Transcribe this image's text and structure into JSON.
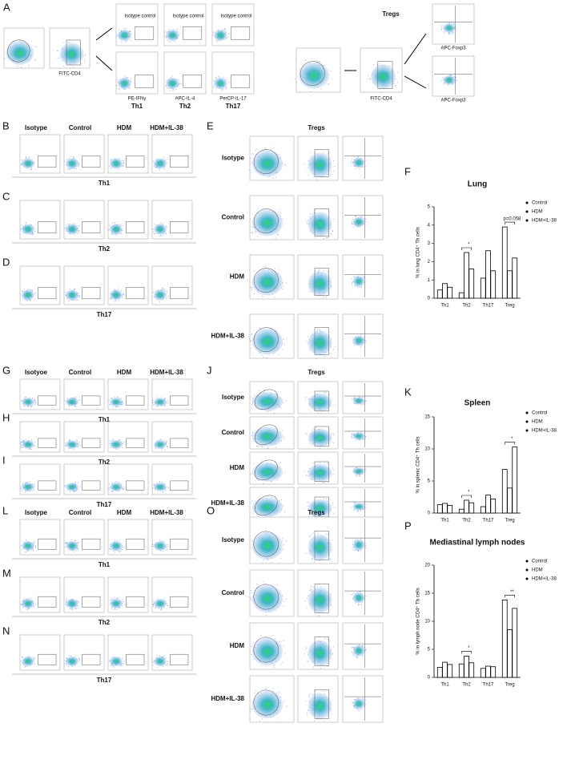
{
  "panel_a": {
    "letter": "A",
    "cd4_label": "FITC-CD4",
    "isotype_control": "Isotype control",
    "x_labels": [
      "PE-IFNγ",
      "APC-IL-4",
      "PerCP-IL-17"
    ],
    "subsets": [
      "Th1",
      "Th2",
      "Th17"
    ],
    "tregs": "Tregs",
    "tregs_cd4_label": "FITC-CD4",
    "foxp3_label": "APC-Foxp3"
  },
  "blocks": [
    {
      "letters": [
        "B",
        "C",
        "D"
      ],
      "tregs_letter": "E",
      "headers": [
        "Isotype",
        "Control",
        "HDM",
        "HDM+IL-38"
      ],
      "rows": [
        "Th1",
        "Th2",
        "Th17"
      ],
      "tregs_title": "Tregs",
      "tregs_rows": [
        "Isotype",
        "Control",
        "HDM",
        "HDM+IL-38"
      ],
      "chart_letter": "F"
    },
    {
      "letters": [
        "G",
        "H",
        "I"
      ],
      "tregs_letter": "J",
      "headers": [
        "Isotyoe",
        "Control",
        "HDM",
        "HDM+IL-38"
      ],
      "rows": [
        "Th1",
        "Th2",
        "Th17"
      ],
      "tregs_title": "Tregs",
      "tregs_rows": [
        "Isotype",
        "Control",
        "HDM",
        "HDM+IL-38"
      ],
      "chart_letter": "K"
    },
    {
      "letters": [
        "L",
        "M",
        "N"
      ],
      "tregs_letter": "O",
      "headers": [
        "Isotype",
        "Control",
        "HDM",
        "HDM+IL-38"
      ],
      "rows": [
        "Th1",
        "Th2",
        "Th17"
      ],
      "tregs_title": "Tregs",
      "tregs_rows": [
        "Isotype",
        "Control",
        "HDM",
        "HDM+IL-38"
      ],
      "chart_letter": "P"
    }
  ],
  "chart_data": [
    {
      "type": "bar",
      "title": "Lung",
      "ylabel": "% in lung CD4⁺ Th cells",
      "categories": [
        "Th1",
        "Th2",
        "Th17",
        "Treg"
      ],
      "series": [
        {
          "name": "Control",
          "color": "#000000",
          "values": [
            0.45,
            0.3,
            1.1,
            3.9
          ]
        },
        {
          "name": "HDM",
          "color": "#000000",
          "values": [
            0.8,
            2.5,
            2.6,
            1.5
          ]
        },
        {
          "name": "HDM+IL-38",
          "color": "#000000",
          "values": [
            0.6,
            1.6,
            1.5,
            2.2
          ]
        }
      ],
      "ylim": [
        0,
        5
      ],
      "yticks": [
        0,
        1,
        2,
        3,
        4,
        5
      ],
      "legend": "right",
      "annotations": [
        {
          "label": "*",
          "category": "Th2"
        },
        {
          "label": "p=0.058",
          "category": "Treg"
        }
      ]
    },
    {
      "type": "bar",
      "title": "Spleen",
      "ylabel": "% in splenic CD4⁺ Th cells",
      "categories": [
        "Th1",
        "Th2",
        "Th17",
        "Treg"
      ],
      "series": [
        {
          "name": "Control",
          "color": "#000000",
          "values": [
            1.3,
            0.6,
            1.0,
            6.8
          ]
        },
        {
          "name": "HDM",
          "color": "#000000",
          "values": [
            1.5,
            2.0,
            2.8,
            3.9
          ]
        },
        {
          "name": "HDM+IL-38",
          "color": "#000000",
          "values": [
            1.2,
            1.6,
            2.2,
            10.3
          ]
        }
      ],
      "ylim": [
        0,
        15
      ],
      "yticks": [
        0,
        5,
        10,
        15
      ],
      "legend": "right",
      "annotations": [
        {
          "label": "*",
          "category": "Th2"
        },
        {
          "label": "*",
          "category": "Treg"
        }
      ]
    },
    {
      "type": "bar",
      "title": "Mediastinal lymph nodes",
      "ylabel": "% in lymph node CD4⁺ Th cells",
      "categories": [
        "Th1",
        "Th2",
        "Th17",
        "Treg"
      ],
      "series": [
        {
          "name": "Control",
          "color": "#000000",
          "values": [
            1.8,
            2.4,
            1.6,
            13.8
          ]
        },
        {
          "name": "HDM",
          "color": "#000000",
          "values": [
            2.7,
            3.8,
            2.0,
            8.5
          ]
        },
        {
          "name": "HDM+IL-38",
          "color": "#000000",
          "values": [
            2.3,
            2.6,
            1.9,
            12.3
          ]
        }
      ],
      "ylim": [
        0,
        20
      ],
      "yticks": [
        0,
        5,
        10,
        15,
        20
      ],
      "legend": "right",
      "annotations": [
        {
          "label": "*",
          "category": "Th2"
        },
        {
          "label": "**",
          "category": "Treg"
        }
      ]
    }
  ]
}
